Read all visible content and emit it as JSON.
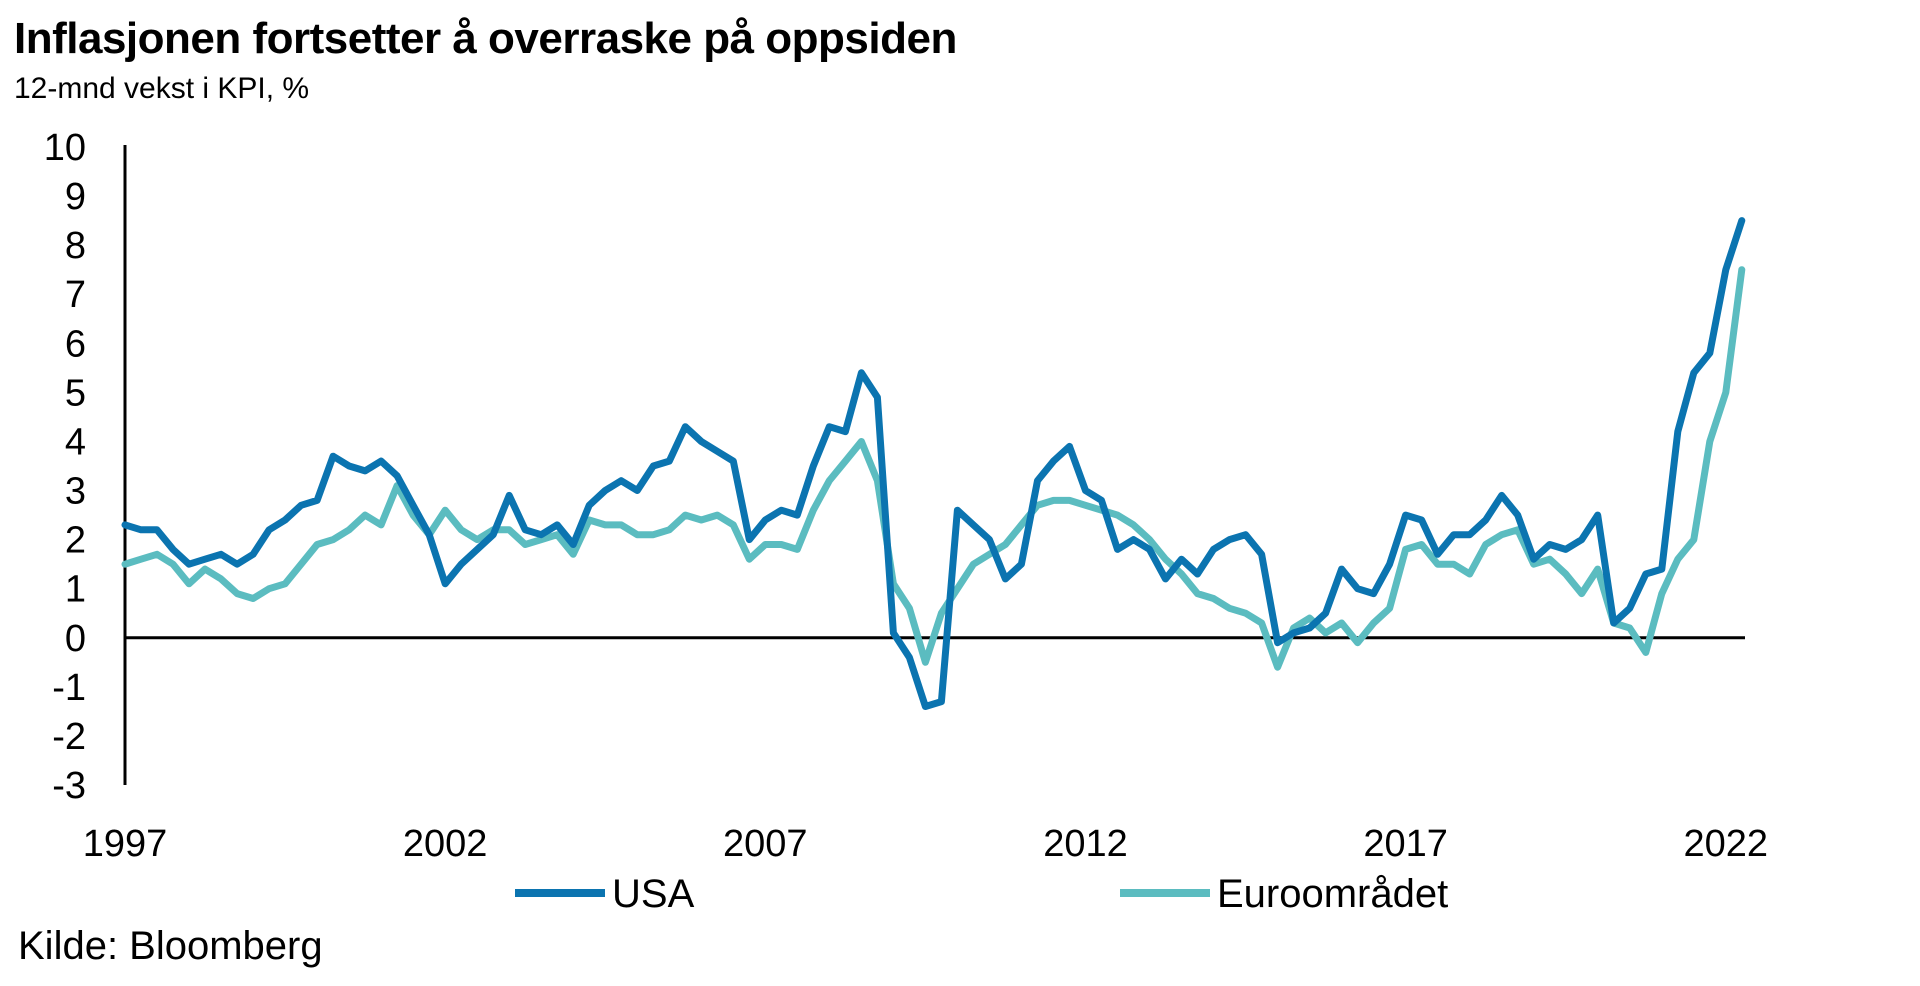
{
  "title": "Inflasjonen fortsetter å overraske på oppsiden",
  "subtitle": "12-mnd vekst i KPI, %",
  "source": "Kilde: Bloomberg",
  "chart_data": {
    "type": "line",
    "title": "Inflasjonen fortsetter å overraske på oppsiden",
    "subtitle": "12-mnd vekst i KPI, %",
    "ylim": [
      -3,
      10
    ],
    "xlim": [
      1997,
      2022.3
    ],
    "y_ticks": [
      "10",
      "9",
      "8",
      "7",
      "6",
      "5",
      "4",
      "3",
      "2",
      "1",
      "0",
      "-1",
      "-2",
      "-3"
    ],
    "x_ticks": [
      "1997",
      "2002",
      "2007",
      "2012",
      "2017",
      "2022"
    ],
    "grid": false,
    "legend_position": "bottom",
    "series": [
      {
        "name": "USA",
        "color": "#0b74b0",
        "x": [
          1997.0,
          1997.25,
          1997.5,
          1997.75,
          1998.0,
          1998.25,
          1998.5,
          1998.75,
          1999.0,
          1999.25,
          1999.5,
          1999.75,
          2000.0,
          2000.25,
          2000.5,
          2000.75,
          2001.0,
          2001.25,
          2001.5,
          2001.75,
          2002.0,
          2002.25,
          2002.5,
          2002.75,
          2003.0,
          2003.25,
          2003.5,
          2003.75,
          2004.0,
          2004.25,
          2004.5,
          2004.75,
          2005.0,
          2005.25,
          2005.5,
          2005.75,
          2006.0,
          2006.25,
          2006.5,
          2006.75,
          2007.0,
          2007.25,
          2007.5,
          2007.75,
          2008.0,
          2008.25,
          2008.5,
          2008.75,
          2009.0,
          2009.25,
          2009.5,
          2009.75,
          2010.0,
          2010.25,
          2010.5,
          2010.75,
          2011.0,
          2011.25,
          2011.5,
          2011.75,
          2012.0,
          2012.25,
          2012.5,
          2012.75,
          2013.0,
          2013.25,
          2013.5,
          2013.75,
          2014.0,
          2014.25,
          2014.5,
          2014.75,
          2015.0,
          2015.25,
          2015.5,
          2015.75,
          2016.0,
          2016.25,
          2016.5,
          2016.75,
          2017.0,
          2017.25,
          2017.5,
          2017.75,
          2018.0,
          2018.25,
          2018.5,
          2018.75,
          2019.0,
          2019.25,
          2019.5,
          2019.75,
          2020.0,
          2020.25,
          2020.5,
          2020.75,
          2021.0,
          2021.25,
          2021.5,
          2021.75,
          2022.0,
          2022.25
        ],
        "values": [
          2.3,
          2.2,
          2.2,
          1.8,
          1.5,
          1.6,
          1.7,
          1.5,
          1.7,
          2.2,
          2.4,
          2.7,
          2.8,
          3.7,
          3.5,
          3.4,
          3.6,
          3.3,
          2.7,
          2.1,
          1.1,
          1.5,
          1.8,
          2.1,
          2.9,
          2.2,
          2.1,
          2.3,
          1.9,
          2.7,
          3.0,
          3.2,
          3.0,
          3.5,
          3.6,
          4.3,
          4.0,
          3.8,
          3.6,
          2.0,
          2.4,
          2.6,
          2.5,
          3.5,
          4.3,
          4.2,
          5.4,
          4.9,
          0.1,
          -0.4,
          -1.4,
          -1.3,
          2.6,
          2.3,
          2.0,
          1.2,
          1.5,
          3.2,
          3.6,
          3.9,
          3.0,
          2.8,
          1.8,
          2.0,
          1.8,
          1.2,
          1.6,
          1.3,
          1.8,
          2.0,
          2.1,
          1.7,
          -0.1,
          0.1,
          0.2,
          0.5,
          1.4,
          1.0,
          0.9,
          1.5,
          2.5,
          2.4,
          1.7,
          2.1,
          2.1,
          2.4,
          2.9,
          2.5,
          1.6,
          1.9,
          1.8,
          2.0,
          2.5,
          0.3,
          0.6,
          1.3,
          1.4,
          4.2,
          5.4,
          5.8,
          7.5,
          8.5
        ]
      },
      {
        "name": "Euroområdet",
        "color": "#5bbcc0",
        "x": [
          1997.0,
          1997.25,
          1997.5,
          1997.75,
          1998.0,
          1998.25,
          1998.5,
          1998.75,
          1999.0,
          1999.25,
          1999.5,
          1999.75,
          2000.0,
          2000.25,
          2000.5,
          2000.75,
          2001.0,
          2001.25,
          2001.5,
          2001.75,
          2002.0,
          2002.25,
          2002.5,
          2002.75,
          2003.0,
          2003.25,
          2003.5,
          2003.75,
          2004.0,
          2004.25,
          2004.5,
          2004.75,
          2005.0,
          2005.25,
          2005.5,
          2005.75,
          2006.0,
          2006.25,
          2006.5,
          2006.75,
          2007.0,
          2007.25,
          2007.5,
          2007.75,
          2008.0,
          2008.25,
          2008.5,
          2008.75,
          2009.0,
          2009.25,
          2009.5,
          2009.75,
          2010.0,
          2010.25,
          2010.5,
          2010.75,
          2011.0,
          2011.25,
          2011.5,
          2011.75,
          2012.0,
          2012.25,
          2012.5,
          2012.75,
          2013.0,
          2013.25,
          2013.5,
          2013.75,
          2014.0,
          2014.25,
          2014.5,
          2014.75,
          2015.0,
          2015.25,
          2015.5,
          2015.75,
          2016.0,
          2016.25,
          2016.5,
          2016.75,
          2017.0,
          2017.25,
          2017.5,
          2017.75,
          2018.0,
          2018.25,
          2018.5,
          2018.75,
          2019.0,
          2019.25,
          2019.5,
          2019.75,
          2020.0,
          2020.25,
          2020.5,
          2020.75,
          2021.0,
          2021.25,
          2021.5,
          2021.75,
          2022.0,
          2022.25
        ],
        "values": [
          1.5,
          1.6,
          1.7,
          1.5,
          1.1,
          1.4,
          1.2,
          0.9,
          0.8,
          1.0,
          1.1,
          1.5,
          1.9,
          2.0,
          2.2,
          2.5,
          2.3,
          3.1,
          2.5,
          2.1,
          2.6,
          2.2,
          2.0,
          2.2,
          2.2,
          1.9,
          2.0,
          2.1,
          1.7,
          2.4,
          2.3,
          2.3,
          2.1,
          2.1,
          2.2,
          2.5,
          2.4,
          2.5,
          2.3,
          1.6,
          1.9,
          1.9,
          1.8,
          2.6,
          3.2,
          3.6,
          4.0,
          3.2,
          1.1,
          0.6,
          -0.5,
          0.5,
          1.0,
          1.5,
          1.7,
          1.9,
          2.3,
          2.7,
          2.8,
          2.8,
          2.7,
          2.6,
          2.5,
          2.3,
          2.0,
          1.6,
          1.3,
          0.9,
          0.8,
          0.6,
          0.5,
          0.3,
          -0.6,
          0.2,
          0.4,
          0.1,
          0.3,
          -0.1,
          0.3,
          0.6,
          1.8,
          1.9,
          1.5,
          1.5,
          1.3,
          1.9,
          2.1,
          2.2,
          1.5,
          1.6,
          1.3,
          0.9,
          1.4,
          0.3,
          0.2,
          -0.3,
          0.9,
          1.6,
          2.0,
          4.0,
          5.0,
          7.5
        ]
      }
    ]
  }
}
